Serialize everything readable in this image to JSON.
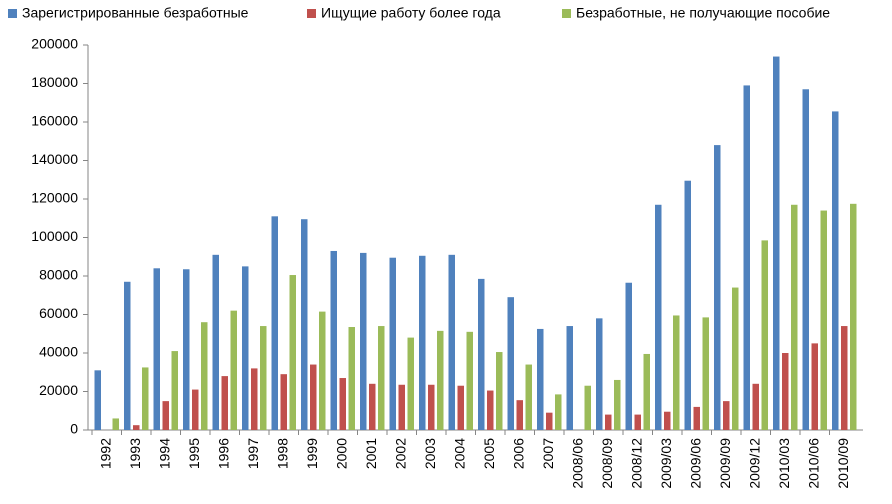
{
  "chart_data": {
    "type": "bar",
    "categories": [
      "1992",
      "1993",
      "1994",
      "1995",
      "1996",
      "1997",
      "1998",
      "1999",
      "2000",
      "2001",
      "2002",
      "2003",
      "2004",
      "2005",
      "2006",
      "2007",
      "2008/06",
      "2008/09",
      "2008/12",
      "2009/03",
      "2009/06",
      "2009/09",
      "2009/12",
      "2010/03",
      "2010/06",
      "2010/09"
    ],
    "series": [
      {
        "name": "Зарегистрированные безработные",
        "color": "#4f81bd",
        "values": [
          31000,
          77000,
          84000,
          83500,
          91000,
          85000,
          111000,
          109500,
          93000,
          92000,
          89500,
          90500,
          91000,
          78500,
          69000,
          52500,
          54000,
          58000,
          76500,
          117000,
          129500,
          148000,
          179000,
          194000,
          177000,
          165500
        ]
      },
      {
        "name": "Ищущие работу более года",
        "color": "#c0504d",
        "values": [
          null,
          2500,
          15000,
          21000,
          28000,
          32000,
          29000,
          34000,
          27000,
          24000,
          23500,
          23500,
          23000,
          20500,
          15500,
          9000,
          null,
          8000,
          8000,
          9500,
          12000,
          15000,
          24000,
          40000,
          45000,
          54000
        ]
      },
      {
        "name": "Безработные, не получающие пособие",
        "color": "#9bbb59",
        "values": [
          6000,
          32500,
          41000,
          56000,
          62000,
          54000,
          80500,
          61500,
          53500,
          54000,
          48000,
          51500,
          51000,
          40500,
          34000,
          18500,
          23000,
          26000,
          39500,
          59500,
          58500,
          74000,
          98500,
          117000,
          114000,
          117500
        ]
      }
    ],
    "ylim": [
      0,
      200000
    ],
    "yticks": [
      0,
      20000,
      40000,
      60000,
      80000,
      100000,
      120000,
      140000,
      160000,
      180000,
      200000
    ],
    "legend": "top"
  }
}
